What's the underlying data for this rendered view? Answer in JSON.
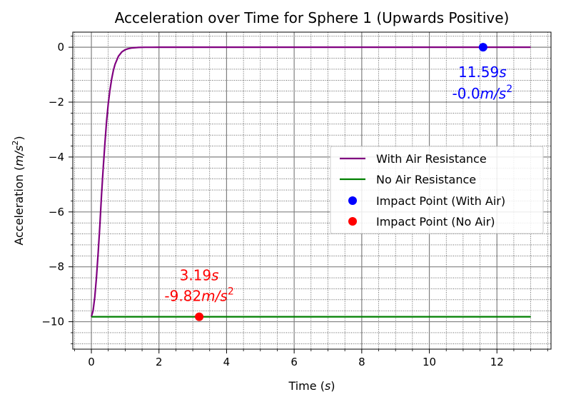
{
  "chart_data": {
    "type": "line",
    "title": "Acceleration over Time for Sphere 1 (Upwards Positive)",
    "xlabel": "Time (s)",
    "ylabel": "Acceleration (m/s²)",
    "xlim": [
      -0.55,
      13.6
    ],
    "ylim": [
      -11.0,
      0.55
    ],
    "x_ticks": [
      0,
      2,
      4,
      6,
      8,
      10,
      12
    ],
    "x_tick_labels": [
      "0",
      "2",
      "4",
      "6",
      "8",
      "10",
      "12"
    ],
    "y_ticks": [
      0,
      -2,
      -4,
      -6,
      -8,
      -10
    ],
    "y_tick_labels": [
      "0",
      "−2",
      "−4",
      "−6",
      "−8",
      "−10"
    ],
    "grid": "major and minor",
    "legend_position": "center-right",
    "series": [
      {
        "name": "With Air Resistance",
        "color": "#800080",
        "x": [
          0,
          0.05,
          0.1,
          0.15,
          0.2,
          0.25,
          0.3,
          0.35,
          0.4,
          0.45,
          0.5,
          0.55,
          0.6,
          0.65,
          0.7,
          0.8,
          0.9,
          1.0,
          1.1,
          1.2,
          1.4,
          1.6,
          1.8,
          2.0,
          2.5,
          3.0,
          4.0,
          6.0,
          8.0,
          10.0,
          12.0,
          13.0
        ],
        "y": [
          -9.82,
          -9.6,
          -9.1,
          -8.4,
          -7.5,
          -6.5,
          -5.4,
          -4.4,
          -3.5,
          -2.7,
          -2.05,
          -1.55,
          -1.15,
          -0.85,
          -0.62,
          -0.33,
          -0.17,
          -0.09,
          -0.05,
          -0.025,
          -0.007,
          -0.002,
          -0.0005,
          0,
          0,
          0,
          0,
          0,
          0,
          0,
          0,
          0
        ]
      },
      {
        "name": "No Air Resistance",
        "color": "#008000",
        "x": [
          0,
          13.0
        ],
        "y": [
          -9.82,
          -9.82
        ]
      }
    ],
    "points": [
      {
        "name": "Impact Point (With Air)",
        "color": "#0000ff",
        "x": 11.59,
        "y": -0.0,
        "label_time": "11.59",
        "label_accel": "-0.0"
      },
      {
        "name": "Impact Point (No Air)",
        "color": "#ff0000",
        "x": 3.19,
        "y": -9.82,
        "label_time": "3.19",
        "label_accel": "-9.82"
      }
    ]
  }
}
